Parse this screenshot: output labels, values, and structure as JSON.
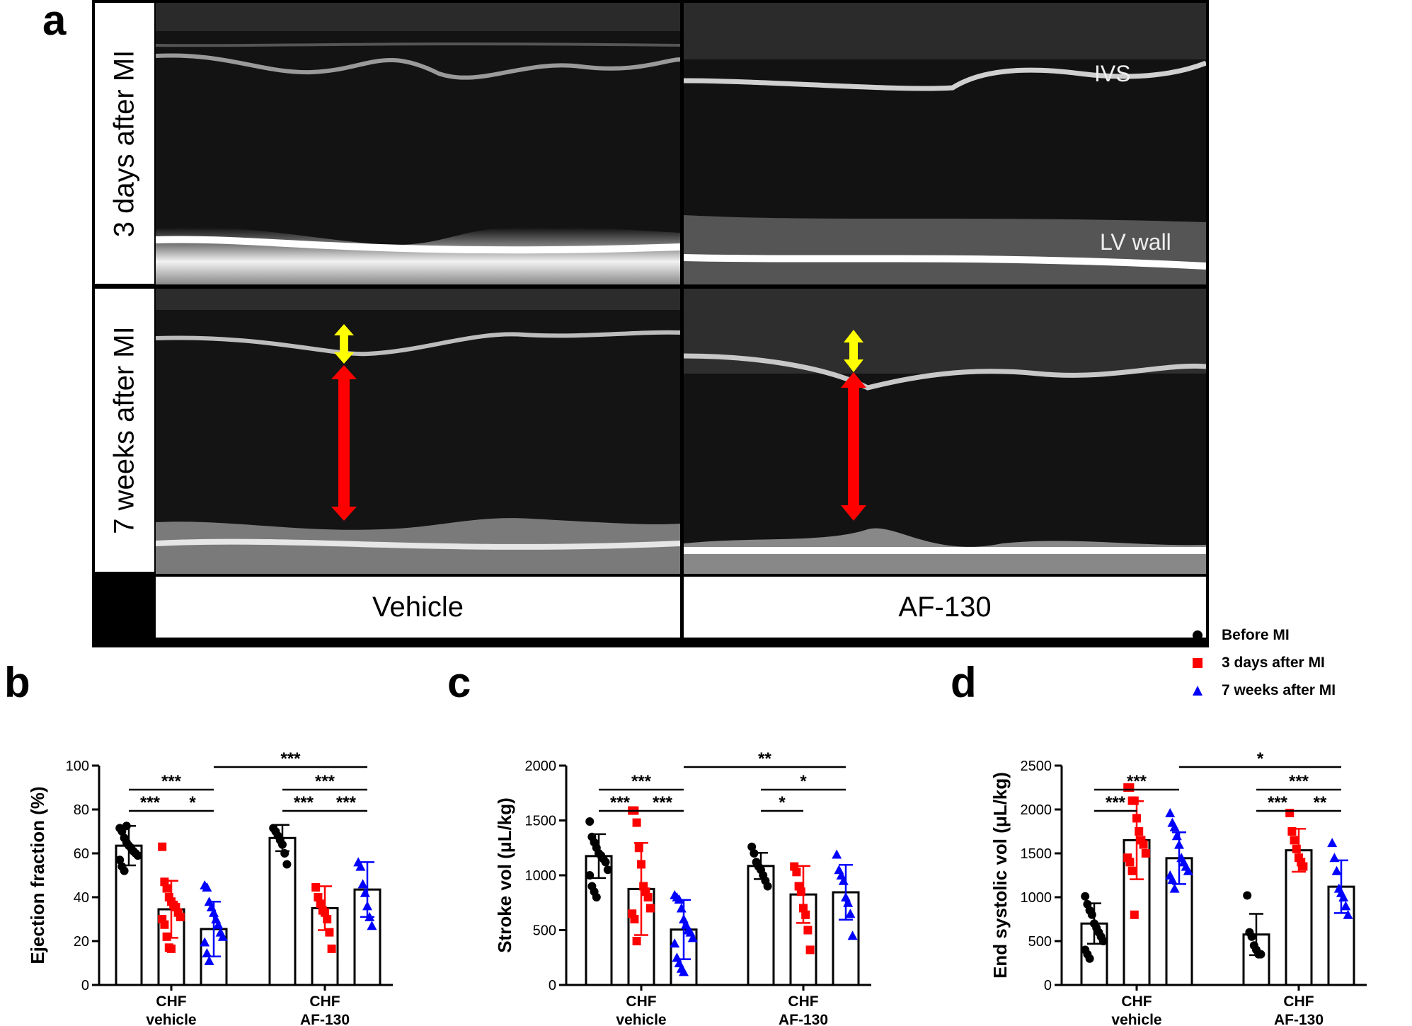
{
  "panel_letters": {
    "a": "a",
    "b": "b",
    "c": "c",
    "d": "d"
  },
  "echo": {
    "row_labels": [
      "3 days after MI",
      "7 weeks after MI"
    ],
    "col_labels": [
      "Vehicle",
      "AF-130"
    ],
    "annotations": {
      "ivs": "IVS",
      "lv_wall": "LV wall"
    },
    "arrow_colors": {
      "wall": "#ffff00",
      "chamber": "#ff0000"
    }
  },
  "legend": [
    {
      "label": "Before MI",
      "color": "#000000",
      "marker": "circle"
    },
    {
      "label": "3 days after MI",
      "color": "#ff0000",
      "marker": "square"
    },
    {
      "label": "7 weeks after MI",
      "color": "#0000ff",
      "marker": "triangle"
    }
  ],
  "chart_data": [
    {
      "type": "bar",
      "panel": "b",
      "ylabel": "Ejection fraction (%)",
      "ylim": [
        0,
        100
      ],
      "yticks": [
        0,
        20,
        40,
        60,
        80,
        100
      ],
      "groups": [
        [
          "CHF",
          "vehicle"
        ],
        [
          "CHF",
          "AF-130"
        ]
      ],
      "series": [
        {
          "name": "Before MI",
          "values": [
            63.5,
            67
          ]
        },
        {
          "name": "3 days after MI",
          "values": [
            34.5,
            35
          ]
        },
        {
          "name": "7 weeks after MI",
          "values": [
            25.5,
            43.5
          ]
        }
      ],
      "error": [
        [
          9,
          6
        ],
        [
          13,
          10
        ],
        [
          12.5,
          12.5
        ]
      ],
      "points": [
        [
          [
            71.5,
            70,
            67,
            65,
            63.5,
            62.5,
            61,
            60,
            59,
            57,
            54,
            52,
            72.5
          ],
          [
            71.5,
            70,
            68,
            66,
            64,
            60,
            55
          ]
        ],
        [
          [
            63,
            47,
            44,
            40,
            38,
            36.5,
            35.5,
            33,
            31,
            30,
            27.5,
            22,
            17,
            16.5
          ],
          [
            44.5,
            40,
            37,
            34,
            33,
            30,
            24,
            16.5
          ]
        ],
        [
          [
            45.5,
            44.5,
            38,
            35.5,
            33,
            30,
            27.5,
            24,
            22,
            19.5,
            14.5,
            11
          ],
          [
            56,
            54,
            46,
            42,
            36,
            31,
            27
          ]
        ]
      ],
      "significance": [
        {
          "label": "***",
          "from": [
            0,
            0
          ],
          "to": [
            0,
            1
          ]
        },
        {
          "label": "***",
          "from": [
            0,
            0
          ],
          "to": [
            0,
            2
          ]
        },
        {
          "label": "*",
          "from": [
            0,
            1
          ],
          "to": [
            0,
            2
          ]
        },
        {
          "label": "***",
          "from": [
            0,
            2
          ],
          "to": [
            1,
            2
          ]
        },
        {
          "label": "***",
          "from": [
            1,
            0
          ],
          "to": [
            1,
            1
          ]
        },
        {
          "label": "***",
          "from": [
            1,
            0
          ],
          "to": [
            1,
            2
          ]
        },
        {
          "label": "***",
          "from": [
            1,
            1
          ],
          "to": [
            1,
            2
          ]
        }
      ]
    },
    {
      "type": "bar",
      "panel": "c",
      "ylabel": "Stroke vol (μL/kg)",
      "ylim": [
        0,
        2000
      ],
      "yticks": [
        0,
        500,
        1000,
        1500,
        2000
      ],
      "groups": [
        [
          "CHF",
          "vehicle"
        ],
        [
          "CHF",
          "AF-130"
        ]
      ],
      "series": [
        {
          "name": "Before MI",
          "values": [
            1175,
            1085
          ]
        },
        {
          "name": "3 days after MI",
          "values": [
            875,
            825
          ]
        },
        {
          "name": "7 weeks after MI",
          "values": [
            505,
            845
          ]
        }
      ],
      "error": [
        [
          200,
          120
        ],
        [
          420,
          260
        ],
        [
          270,
          250
        ]
      ],
      "points": [
        [
          [
            1490,
            1350,
            1300,
            1250,
            1200,
            1180,
            1150,
            1120,
            1050,
            1000,
            900,
            850,
            800
          ],
          [
            1260,
            1200,
            1120,
            1080,
            1050,
            1000,
            950,
            900
          ]
        ],
        [
          [
            1590,
            1590,
            1480,
            1250,
            1100,
            900,
            850,
            800,
            700,
            650,
            600,
            400
          ],
          [
            1080,
            1030,
            900,
            850,
            700,
            640,
            500,
            320
          ]
        ],
        [
          [
            820,
            800,
            780,
            700,
            600,
            550,
            500,
            480,
            430,
            380,
            250,
            200,
            150,
            120
          ],
          [
            1190,
            1050,
            1000,
            950,
            800,
            750,
            650,
            450
          ]
        ]
      ],
      "significance": [
        {
          "label": "***",
          "from": [
            0,
            0
          ],
          "to": [
            0,
            1
          ]
        },
        {
          "label": "***",
          "from": [
            0,
            1
          ],
          "to": [
            0,
            2
          ]
        },
        {
          "label": "***",
          "from": [
            0,
            0
          ],
          "to": [
            0,
            2
          ]
        },
        {
          "label": "**",
          "from": [
            0,
            2
          ],
          "to": [
            1,
            2
          ]
        },
        {
          "label": "*",
          "from": [
            1,
            0
          ],
          "to": [
            1,
            2
          ]
        },
        {
          "label": "*",
          "from": [
            1,
            0
          ],
          "to": [
            1,
            1
          ]
        }
      ]
    },
    {
      "type": "bar",
      "panel": "d",
      "ylabel": "End systolic vol (μL/kg)",
      "ylim": [
        0,
        2500
      ],
      "yticks": [
        0,
        500,
        1000,
        1500,
        2000,
        2500
      ],
      "groups": [
        [
          "CHF",
          "vehicle"
        ],
        [
          "CHF",
          "AF-130"
        ]
      ],
      "series": [
        {
          "name": "Before MI",
          "values": [
            700,
            575
          ]
        },
        {
          "name": "3 days after MI",
          "values": [
            1650,
            1535
          ]
        },
        {
          "name": "7 weeks after MI",
          "values": [
            1445,
            1120
          ]
        }
      ],
      "error": [
        [
          230,
          235
        ],
        [
          445,
          245
        ],
        [
          295,
          300
        ]
      ],
      "points": [
        [
          [
            1010,
            920,
            850,
            800,
            700,
            650,
            600,
            550,
            500,
            400,
            350,
            300
          ],
          [
            1020,
            600,
            550,
            450,
            400,
            350,
            350
          ]
        ],
        [
          [
            2250,
            2250,
            2100,
            2100,
            1900,
            1750,
            1650,
            1600,
            1500,
            1450,
            1400,
            1300,
            800
          ],
          [
            1960,
            1750,
            1650,
            1550,
            1450,
            1400,
            1350
          ]
        ],
        [
          [
            1960,
            1850,
            1800,
            1700,
            1600,
            1450,
            1400,
            1350,
            1300,
            1250,
            1200,
            1100
          ],
          [
            1620,
            1450,
            1300,
            1100,
            1050,
            1000,
            900,
            800
          ]
        ]
      ],
      "significance": [
        {
          "label": "***",
          "from": [
            0,
            0
          ],
          "to": [
            0,
            1
          ]
        },
        {
          "label": "***",
          "from": [
            0,
            0
          ],
          "to": [
            0,
            2
          ]
        },
        {
          "label": "*",
          "from": [
            0,
            2
          ],
          "to": [
            1,
            2
          ]
        },
        {
          "label": "***",
          "from": [
            1,
            0
          ],
          "to": [
            1,
            2
          ]
        },
        {
          "label": "***",
          "from": [
            1,
            0
          ],
          "to": [
            1,
            1
          ]
        },
        {
          "label": "**",
          "from": [
            1,
            1
          ],
          "to": [
            1,
            2
          ]
        }
      ]
    }
  ]
}
